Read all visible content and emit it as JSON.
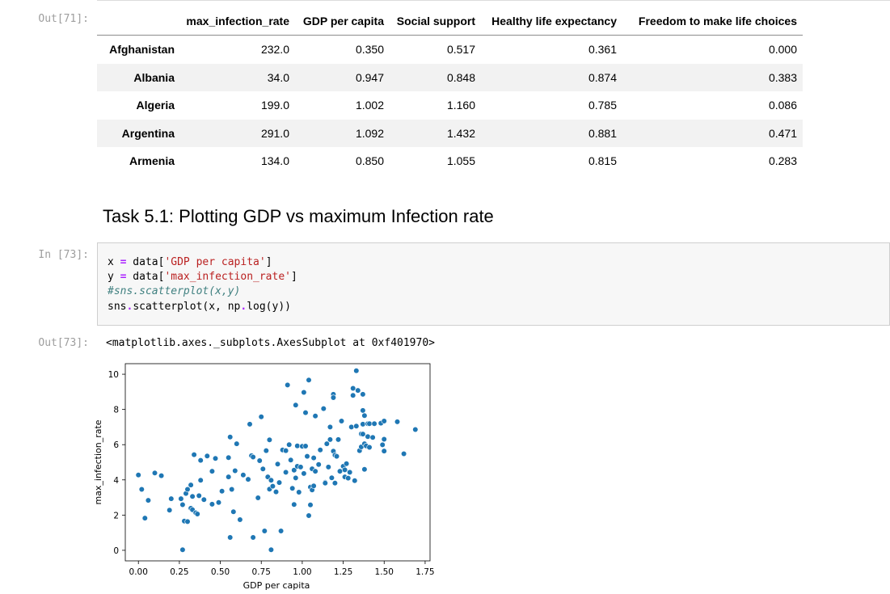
{
  "out71": {
    "prompt": "Out[71]:"
  },
  "table": {
    "columns": [
      "max_infection_rate",
      "GDP per capita",
      "Social support",
      "Healthy life expectancy",
      "Freedom to make life choices"
    ],
    "rows": [
      {
        "index": "Afghanistan",
        "values": [
          "232.0",
          "0.350",
          "0.517",
          "0.361",
          "0.000"
        ]
      },
      {
        "index": "Albania",
        "values": [
          "34.0",
          "0.947",
          "0.848",
          "0.874",
          "0.383"
        ]
      },
      {
        "index": "Algeria",
        "values": [
          "199.0",
          "1.002",
          "1.160",
          "0.785",
          "0.086"
        ]
      },
      {
        "index": "Argentina",
        "values": [
          "291.0",
          "1.092",
          "1.432",
          "0.881",
          "0.471"
        ]
      },
      {
        "index": "Armenia",
        "values": [
          "134.0",
          "0.850",
          "1.055",
          "0.815",
          "0.283"
        ]
      }
    ]
  },
  "markdown": {
    "heading": "Task 5.1: Plotting GDP vs maximum Infection rate"
  },
  "in73": {
    "prompt": "In [73]:",
    "code_lines": [
      "x = data['GDP per capita']",
      "y = data['max_infection_rate']",
      "#sns.scatterplot(x,y)",
      "sns.scatterplot(x, np.log(y))"
    ]
  },
  "out73": {
    "prompt": "Out[73]:",
    "repr": "<matplotlib.axes._subplots.AxesSubplot at 0xf401970>"
  },
  "chart_data": {
    "type": "scatter",
    "xlabel": "GDP per capita",
    "ylabel": "max_infection_rate",
    "xlim": [
      -0.08,
      1.78
    ],
    "ylim": [
      -0.6,
      10.6
    ],
    "xticks": [
      "0.00",
      "0.25",
      "0.50",
      "0.75",
      "1.00",
      "1.25",
      "1.50",
      "1.75"
    ],
    "yticks": [
      "0",
      "2",
      "4",
      "6",
      "8",
      "10"
    ],
    "grid": false,
    "point_color": "#1f77b4",
    "points": [
      [
        0.0,
        4.28
      ],
      [
        0.02,
        3.46
      ],
      [
        0.04,
        1.83
      ],
      [
        0.06,
        2.84
      ],
      [
        0.1,
        4.39
      ],
      [
        0.14,
        4.24
      ],
      [
        0.19,
        2.28
      ],
      [
        0.2,
        2.93
      ],
      [
        0.26,
        2.93
      ],
      [
        0.27,
        2.59
      ],
      [
        0.27,
        0.03
      ],
      [
        0.28,
        1.66
      ],
      [
        0.29,
        3.23
      ],
      [
        0.3,
        3.46
      ],
      [
        0.3,
        1.63
      ],
      [
        0.32,
        3.71
      ],
      [
        0.32,
        2.39
      ],
      [
        0.33,
        2.3
      ],
      [
        0.33,
        3.06
      ],
      [
        0.34,
        5.43
      ],
      [
        0.35,
        2.13
      ],
      [
        0.36,
        2.06
      ],
      [
        0.37,
        3.1
      ],
      [
        0.38,
        3.98
      ],
      [
        0.38,
        5.11
      ],
      [
        0.4,
        2.88
      ],
      [
        0.42,
        5.36
      ],
      [
        0.45,
        4.49
      ],
      [
        0.45,
        2.62
      ],
      [
        0.47,
        5.22
      ],
      [
        0.49,
        2.72
      ],
      [
        0.51,
        3.36
      ],
      [
        0.55,
        4.17
      ],
      [
        0.55,
        5.26
      ],
      [
        0.56,
        6.43
      ],
      [
        0.56,
        0.73
      ],
      [
        0.57,
        3.46
      ],
      [
        0.58,
        2.19
      ],
      [
        0.59,
        4.52
      ],
      [
        0.6,
        6.05
      ],
      [
        0.62,
        1.74
      ],
      [
        0.64,
        4.28
      ],
      [
        0.67,
        4.03
      ],
      [
        0.68,
        7.16
      ],
      [
        0.69,
        5.37
      ],
      [
        0.7,
        5.3
      ],
      [
        0.7,
        0.73
      ],
      [
        0.73,
        2.98
      ],
      [
        0.74,
        5.09
      ],
      [
        0.75,
        7.58
      ],
      [
        0.76,
        4.62
      ],
      [
        0.77,
        1.1
      ],
      [
        0.78,
        5.66
      ],
      [
        0.79,
        4.17
      ],
      [
        0.8,
        3.47
      ],
      [
        0.8,
        6.27
      ],
      [
        0.81,
        0.03
      ],
      [
        0.81,
        3.98
      ],
      [
        0.82,
        3.64
      ],
      [
        0.84,
        3.32
      ],
      [
        0.85,
        4.9
      ],
      [
        0.86,
        3.85
      ],
      [
        0.87,
        1.1
      ],
      [
        0.88,
        5.7
      ],
      [
        0.9,
        4.43
      ],
      [
        0.9,
        5.66
      ],
      [
        0.91,
        9.39
      ],
      [
        0.92,
        6.0
      ],
      [
        0.93,
        5.13
      ],
      [
        0.94,
        3.52
      ],
      [
        0.95,
        2.6
      ],
      [
        0.95,
        4.55
      ],
      [
        0.96,
        4.11
      ],
      [
        0.96,
        8.25
      ],
      [
        0.97,
        4.77
      ],
      [
        0.97,
        5.93
      ],
      [
        0.98,
        3.3
      ],
      [
        0.99,
        4.73
      ],
      [
        1.0,
        5.91
      ],
      [
        1.01,
        4.36
      ],
      [
        1.01,
        8.97
      ],
      [
        1.02,
        7.82
      ],
      [
        1.02,
        5.92
      ],
      [
        1.03,
        5.34
      ],
      [
        1.04,
        9.67
      ],
      [
        1.04,
        1.97
      ],
      [
        1.05,
        3.59
      ],
      [
        1.05,
        2.58
      ],
      [
        1.06,
        4.63
      ],
      [
        1.06,
        3.43
      ],
      [
        1.07,
        3.66
      ],
      [
        1.07,
        5.25
      ],
      [
        1.08,
        4.49
      ],
      [
        1.08,
        7.63
      ],
      [
        1.1,
        4.87
      ],
      [
        1.11,
        5.7
      ],
      [
        1.13,
        8.05
      ],
      [
        1.14,
        3.86
      ],
      [
        1.14,
        3.82
      ],
      [
        1.15,
        6.05
      ],
      [
        1.16,
        4.73
      ],
      [
        1.17,
        7.0
      ],
      [
        1.17,
        6.29
      ],
      [
        1.18,
        4.12
      ],
      [
        1.19,
        5.63
      ],
      [
        1.19,
        8.86
      ],
      [
        1.19,
        8.67
      ],
      [
        1.2,
        3.82
      ],
      [
        1.2,
        5.41
      ],
      [
        1.21,
        5.34
      ],
      [
        1.22,
        6.29
      ],
      [
        1.23,
        4.49
      ],
      [
        1.24,
        7.34
      ],
      [
        1.25,
        4.77
      ],
      [
        1.26,
        4.57
      ],
      [
        1.26,
        4.17
      ],
      [
        1.27,
        4.92
      ],
      [
        1.28,
        4.1
      ],
      [
        1.29,
        4.43
      ],
      [
        1.3,
        7.0
      ],
      [
        1.31,
        9.2
      ],
      [
        1.31,
        8.8
      ],
      [
        1.32,
        3.96
      ],
      [
        1.33,
        7.05
      ],
      [
        1.33,
        10.2
      ],
      [
        1.34,
        9.08
      ],
      [
        1.35,
        5.66
      ],
      [
        1.36,
        5.87
      ],
      [
        1.36,
        6.61
      ],
      [
        1.37,
        7.16
      ],
      [
        1.37,
        7.94
      ],
      [
        1.37,
        8.86
      ],
      [
        1.37,
        6.6
      ],
      [
        1.38,
        4.6
      ],
      [
        1.38,
        6.05
      ],
      [
        1.38,
        7.65
      ],
      [
        1.39,
        5.93
      ],
      [
        1.4,
        7.19
      ],
      [
        1.4,
        6.46
      ],
      [
        1.4,
        7.19
      ],
      [
        1.41,
        7.19
      ],
      [
        1.41,
        5.85
      ],
      [
        1.43,
        6.41
      ],
      [
        1.44,
        7.19
      ],
      [
        1.48,
        7.22
      ],
      [
        1.49,
        5.99
      ],
      [
        1.5,
        7.34
      ],
      [
        1.5,
        6.31
      ],
      [
        1.5,
        5.64
      ],
      [
        1.58,
        7.3
      ],
      [
        1.62,
        5.48
      ],
      [
        1.69,
        6.86
      ]
    ]
  }
}
